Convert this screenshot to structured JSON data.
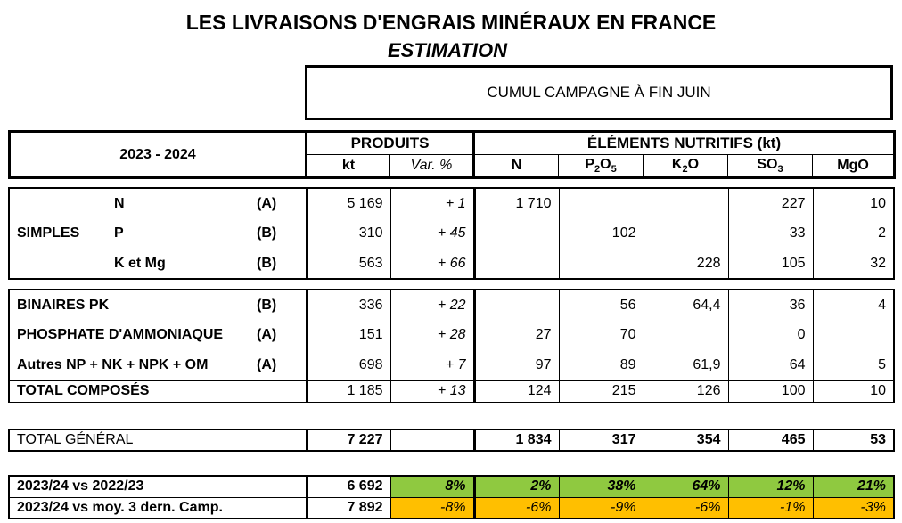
{
  "title": "LES LIVRAISONS D'ENGRAIS MINÉRAUX EN FRANCE",
  "subtitle": "ESTIMATION",
  "cumul_label": "CUMUL CAMPAGNE À FIN JUIN",
  "header": {
    "season": "2023 - 2024",
    "produits": "PRODUITS",
    "elements": "ÉLÉMENTS NUTRITIFS (kt)",
    "kt": "kt",
    "var": "Var. %",
    "n": "N",
    "p2o5_main": "P",
    "p2o5_sub1": "2",
    "p2o5_o": "O",
    "p2o5_sub2": "5",
    "k2o_main": "K",
    "k2o_sub": "2",
    "k2o_o": "O",
    "so3_main": "SO",
    "so3_sub": "3",
    "mgo": "MgO"
  },
  "simples": {
    "group": "SIMPLES",
    "rows": [
      {
        "name": "N",
        "code": "(A)",
        "kt": "5 169",
        "var": "+ 1",
        "n": "1 710",
        "p2o5": "",
        "k2o": "",
        "so3": "227",
        "mgo": "10"
      },
      {
        "name": "P",
        "code": "(B)",
        "kt": "310",
        "var": "+ 45",
        "n": "",
        "p2o5": "102",
        "k2o": "",
        "so3": "33",
        "mgo": "2"
      },
      {
        "name": "K et Mg",
        "code": "(B)",
        "kt": "563",
        "var": "+ 66",
        "n": "",
        "p2o5": "",
        "k2o": "228",
        "so3": "105",
        "mgo": "32"
      }
    ]
  },
  "composes": {
    "rows": [
      {
        "name": "BINAIRES PK",
        "code": "(B)",
        "kt": "336",
        "var": "+ 22",
        "n": "",
        "p2o5": "56",
        "k2o": "64,4",
        "so3": "36",
        "mgo": "4"
      },
      {
        "name": "PHOSPHATE D'AMMONIAQUE",
        "code": "(A)",
        "kt": "151",
        "var": "+ 28",
        "n": "27",
        "p2o5": "70",
        "k2o": "",
        "so3": "0",
        "mgo": ""
      },
      {
        "name": "Autres NP + NK + NPK + OM",
        "code": "(A)",
        "kt": "698",
        "var": "+ 7",
        "n": "97",
        "p2o5": "89",
        "k2o": "61,9",
        "so3": "64",
        "mgo": "5"
      }
    ],
    "total": {
      "name": "TOTAL COMPOSÉS",
      "kt": "1 185",
      "var": "+ 13",
      "n": "124",
      "p2o5": "215",
      "k2o": "126",
      "so3": "100",
      "mgo": "10"
    }
  },
  "general": {
    "name": "TOTAL GÉNÉRAL",
    "kt": "7 227",
    "var": "",
    "n": "1 834",
    "p2o5": "317",
    "k2o": "354",
    "so3": "465",
    "mgo": "53"
  },
  "comparisons": [
    {
      "name": "2023/24 vs 2022/23",
      "kt": "6 692",
      "var": "8%",
      "n": "2%",
      "p2o5": "38%",
      "k2o": "64%",
      "so3": "12%",
      "mgo": "21%",
      "color": "#8fc940"
    },
    {
      "name": "2023/24 vs moy. 3 dern. Camp.",
      "kt": "7 892",
      "var": "-8%",
      "n": "-6%",
      "p2o5": "-9%",
      "k2o": "-6%",
      "so3": "-1%",
      "mgo": "-3%",
      "color": "#ffbf00"
    }
  ]
}
